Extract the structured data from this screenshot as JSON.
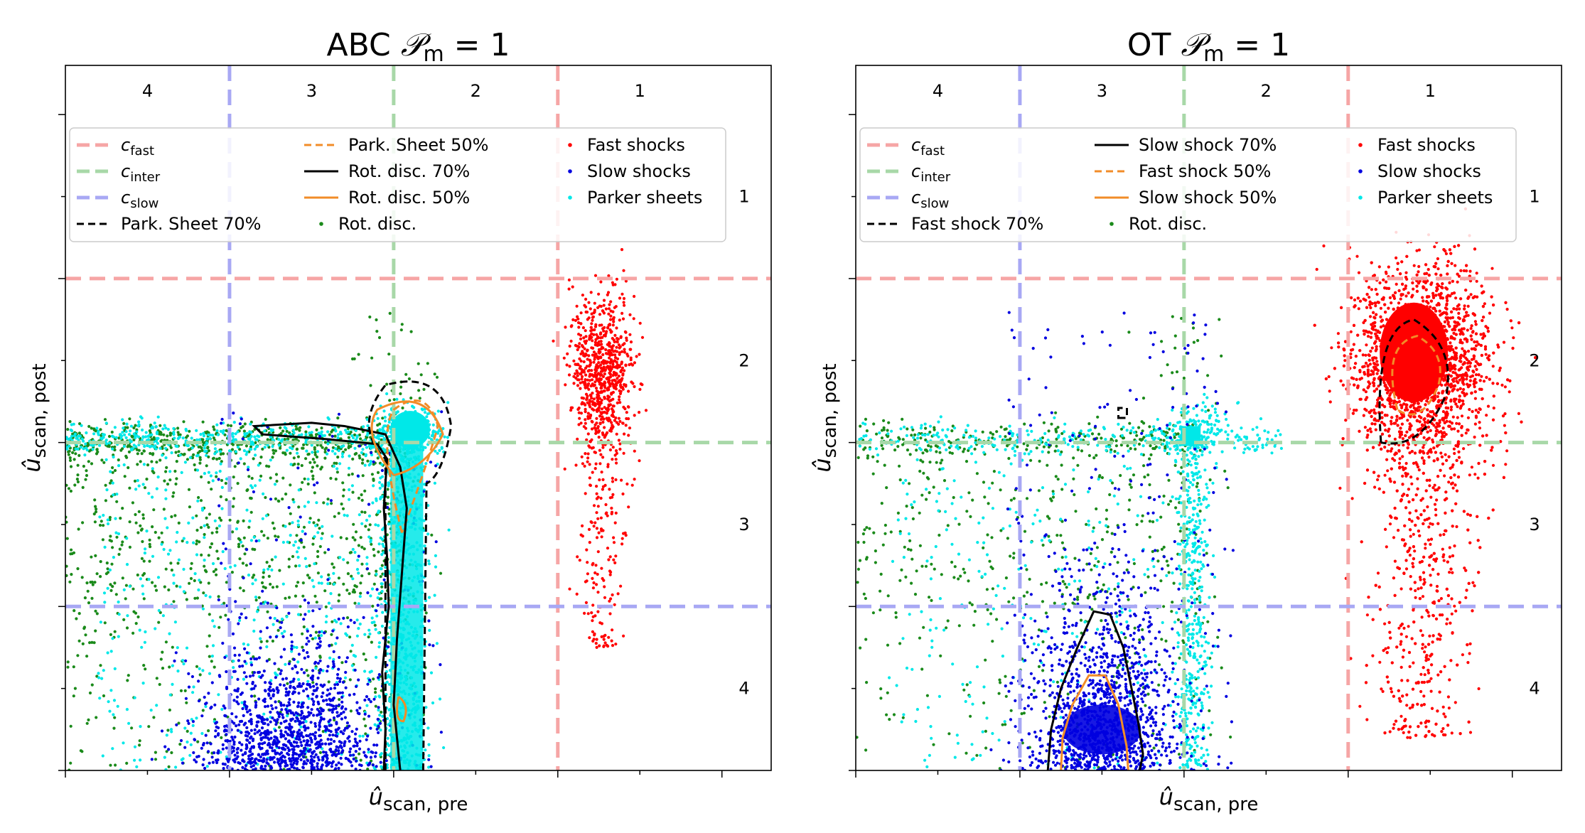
{
  "chart_data": [
    {
      "type": "scatter",
      "title": "ABC 𝒫m = 1",
      "title_prefix": "ABC",
      "title_symbol": "𝒫",
      "title_sub": "m",
      "title_suffix": " = 1",
      "xlabel": "û",
      "xlabel_sub": "scan, pre",
      "ylabel": "û",
      "ylabel_sub": "scan, post",
      "xlim": [
        0,
        4.3
      ],
      "ylim": [
        0,
        4.3
      ],
      "reference_lines": [
        {
          "name": "c_fast",
          "label": "c",
          "label_sub": "fast",
          "value": 3.0,
          "color": "#f6a5a5"
        },
        {
          "name": "c_inter",
          "label": "c",
          "label_sub": "inter",
          "value": 2.0,
          "color": "#a8d8a8"
        },
        {
          "name": "c_slow",
          "label": "c",
          "label_sub": "slow",
          "value": 1.0,
          "color": "#a8a8f4"
        }
      ],
      "x_zones": [
        "4",
        "3",
        "2",
        "1"
      ],
      "y_zones": [
        "1",
        "2",
        "3",
        "4"
      ],
      "legend": [
        [
          "c_fast",
          "c_inter",
          "c_slow",
          "Park. Sheet 70%"
        ],
        [
          "Park. Sheet 50%",
          "Rot. disc. 70%",
          "Rot. disc. 50%",
          "Rot. disc."
        ],
        [
          "Fast shocks",
          "Slow shocks",
          "Parker sheets"
        ]
      ],
      "legend_location": "upper-center",
      "series": [
        {
          "name": "Fast shocks",
          "color": "#ff0000",
          "cluster": {
            "cx": 3.27,
            "cy": 2.45,
            "sx": 0.1,
            "sy": 0.22,
            "tail_to_y": 0.75
          }
        },
        {
          "name": "Slow shocks",
          "color": "#0000e0",
          "cluster": {
            "cx": 1.35,
            "cy": 0.25,
            "sx": 0.28,
            "sy": 0.28
          }
        },
        {
          "name": "Parker sheets",
          "color": "#00e8e8",
          "cluster": {
            "cx": 2.05,
            "cy": 2.05,
            "vertical_band": [
              1.98,
              2.22
            ],
            "horizontal_band": [
              0.0,
              2.3
            ]
          }
        },
        {
          "name": "Rot. disc.",
          "color": "#1a8a1a",
          "cluster": {
            "cx": 1.2,
            "cy": 1.3,
            "sx": 0.9,
            "sy": 0.9
          }
        }
      ],
      "contours": [
        {
          "name": "Park. Sheet 70%",
          "color": "#000000",
          "style": "dashed"
        },
        {
          "name": "Park. Sheet 50%",
          "color": "#f28c28",
          "style": "dashed"
        },
        {
          "name": "Rot. disc. 70%",
          "color": "#000000",
          "style": "solid",
          "points": [
            [
              2.04,
              0.0
            ],
            [
              2.0,
              0.4
            ],
            [
              2.02,
              0.8
            ],
            [
              2.05,
              1.2
            ],
            [
              2.08,
              1.6
            ],
            [
              2.04,
              1.85
            ],
            [
              1.95,
              2.05
            ],
            [
              1.7,
              2.1
            ],
            [
              1.5,
              2.12
            ],
            [
              1.15,
              2.1
            ],
            [
              1.2,
              2.05
            ],
            [
              1.6,
              2.02
            ],
            [
              1.9,
              1.99
            ],
            [
              1.96,
              1.9
            ],
            [
              1.94,
              1.6
            ],
            [
              1.96,
              1.3
            ],
            [
              1.97,
              1.0
            ],
            [
              1.93,
              0.6
            ],
            [
              1.95,
              0.25
            ],
            [
              1.94,
              0.0
            ]
          ]
        },
        {
          "name": "Rot. disc. 50%",
          "color": "#f28c28",
          "style": "solid"
        }
      ]
    },
    {
      "type": "scatter",
      "title": "OT 𝒫m = 1",
      "title_prefix": "OT",
      "title_symbol": "𝒫",
      "title_sub": "m",
      "title_suffix": " = 1",
      "xlabel": "û",
      "xlabel_sub": "scan, pre",
      "ylabel": "û",
      "ylabel_sub": "scan, post",
      "xlim": [
        0,
        4.3
      ],
      "ylim": [
        0,
        4.3
      ],
      "reference_lines": [
        {
          "name": "c_fast",
          "label": "c",
          "label_sub": "fast",
          "value": 3.0,
          "color": "#f6a5a5"
        },
        {
          "name": "c_inter",
          "label": "c",
          "label_sub": "inter",
          "value": 2.0,
          "color": "#a8d8a8"
        },
        {
          "name": "c_slow",
          "label": "c",
          "label_sub": "slow",
          "value": 1.0,
          "color": "#a8a8f4"
        }
      ],
      "x_zones": [
        "4",
        "3",
        "2",
        "1"
      ],
      "y_zones": [
        "1",
        "2",
        "3",
        "4"
      ],
      "legend": [
        [
          "c_fast",
          "c_inter",
          "c_slow",
          "Fast shock 70%"
        ],
        [
          "Slow shock 70%",
          "Fast shock 50%",
          "Slow shock 50%",
          "Rot. disc."
        ],
        [
          "Fast shocks",
          "Slow shocks",
          "Parker sheets"
        ]
      ],
      "legend_location": "upper-center",
      "series": [
        {
          "name": "Fast shocks",
          "color": "#ff0000",
          "cluster": {
            "cx": 3.45,
            "cy": 2.5,
            "sx": 0.22,
            "sy": 0.28,
            "tail_to_y": 0.2
          }
        },
        {
          "name": "Slow shocks",
          "color": "#0000e0",
          "cluster": {
            "cx": 1.5,
            "cy": 0.4,
            "sx": 0.22,
            "sy": 0.3
          }
        },
        {
          "name": "Parker sheets",
          "color": "#00e8e8",
          "cluster": {
            "cx": 2.05,
            "cy": 2.05,
            "vertical_band": [
              1.98,
              2.12
            ],
            "horizontal_band": [
              0.0,
              2.6
            ]
          }
        },
        {
          "name": "Rot. disc.",
          "color": "#1a8a1a",
          "cluster": {
            "cx": 1.4,
            "cy": 1.6,
            "sx": 0.9,
            "sy": 0.9
          }
        }
      ],
      "contours": [
        {
          "name": "Fast shock 70%",
          "color": "#000000",
          "style": "dashed"
        },
        {
          "name": "Slow shock 70%",
          "color": "#000000",
          "style": "solid",
          "points": [
            [
              1.17,
              0.0
            ],
            [
              1.19,
              0.25
            ],
            [
              1.25,
              0.5
            ],
            [
              1.35,
              0.75
            ],
            [
              1.45,
              0.97
            ],
            [
              1.55,
              0.95
            ],
            [
              1.63,
              0.75
            ],
            [
              1.68,
              0.5
            ],
            [
              1.72,
              0.3
            ],
            [
              1.75,
              0.1
            ],
            [
              1.73,
              0.0
            ]
          ]
        },
        {
          "name": "Fast shock 50%",
          "color": "#f28c28",
          "style": "dashed"
        },
        {
          "name": "Slow shock 50%",
          "color": "#f28c28",
          "style": "solid",
          "points": [
            [
              1.25,
              0.0
            ],
            [
              1.26,
              0.2
            ],
            [
              1.32,
              0.4
            ],
            [
              1.42,
              0.58
            ],
            [
              1.52,
              0.58
            ],
            [
              1.6,
              0.4
            ],
            [
              1.65,
              0.15
            ],
            [
              1.66,
              0.0
            ]
          ]
        }
      ]
    }
  ]
}
